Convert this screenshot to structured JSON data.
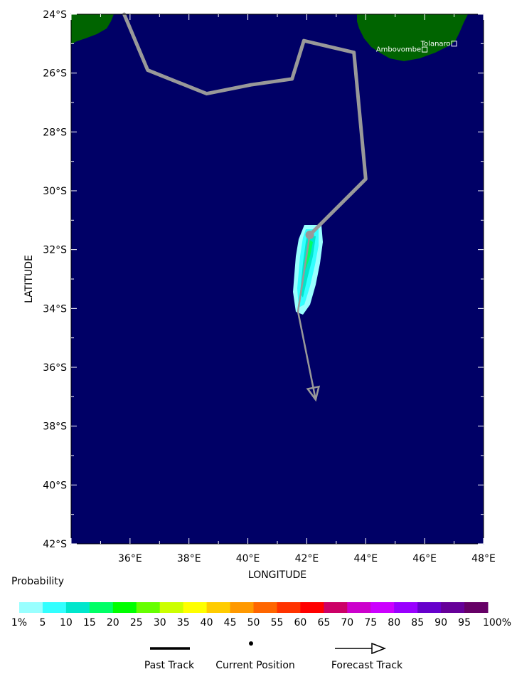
{
  "map": {
    "xlabel": "LONGITUDE",
    "ylabel": "LATITUDE",
    "lon_range": [
      34,
      48
    ],
    "lat_range": [
      -42,
      -24
    ],
    "lon_ticks": [
      "36°E",
      "38°E",
      "40°E",
      "42°E",
      "44°E",
      "46°E",
      "48°E"
    ],
    "lat_ticks": [
      "24°S",
      "26°S",
      "28°S",
      "30°S",
      "32°S",
      "34°S",
      "36°S",
      "38°S",
      "40°S",
      "42°S"
    ],
    "ocean_color": "#000066",
    "land_color": "#006400",
    "track_color": "#999999",
    "cities": [
      {
        "name": "Tolanaro",
        "lon": 47.0,
        "lat": -25.0
      },
      {
        "name": "Ambovombe",
        "lon": 46.0,
        "lat": -25.2
      }
    ],
    "past_track": [
      {
        "lon": 35.8,
        "lat": -24.0
      },
      {
        "lon": 36.6,
        "lat": -25.9
      },
      {
        "lon": 38.6,
        "lat": -26.7
      },
      {
        "lon": 40.1,
        "lat": -26.4
      },
      {
        "lon": 41.5,
        "lat": -26.2
      },
      {
        "lon": 41.9,
        "lat": -24.9
      },
      {
        "lon": 43.6,
        "lat": -25.3
      },
      {
        "lon": 44.0,
        "lat": -29.6
      },
      {
        "lon": 42.1,
        "lat": -31.5
      }
    ],
    "current_position": {
      "lon": 42.1,
      "lat": -31.5
    },
    "forecast_track": [
      {
        "lon": 42.1,
        "lat": -31.5
      },
      {
        "lon": 41.7,
        "lat": -34.1
      },
      {
        "lon": 42.3,
        "lat": -37.1
      }
    ]
  },
  "legend": {
    "title": "Probability",
    "colors": [
      "#99ffff",
      "#33ffff",
      "#00e6cc",
      "#00ff66",
      "#00ff00",
      "#66ff00",
      "#ccff00",
      "#ffff00",
      "#ffcc00",
      "#ff9900",
      "#ff6600",
      "#ff3300",
      "#ff0000",
      "#cc0066",
      "#cc00cc",
      "#cc00ff",
      "#9900ff",
      "#6600cc",
      "#660099",
      "#660066"
    ],
    "labels": [
      "1%",
      "5",
      "10",
      "15",
      "20",
      "25",
      "30",
      "35",
      "40",
      "45",
      "50",
      "55",
      "60",
      "65",
      "70",
      "75",
      "80",
      "85",
      "90",
      "95",
      "100%"
    ],
    "past_track_label": "Past Track",
    "current_position_label": "Current Position",
    "forecast_track_label": "Forecast Track"
  }
}
